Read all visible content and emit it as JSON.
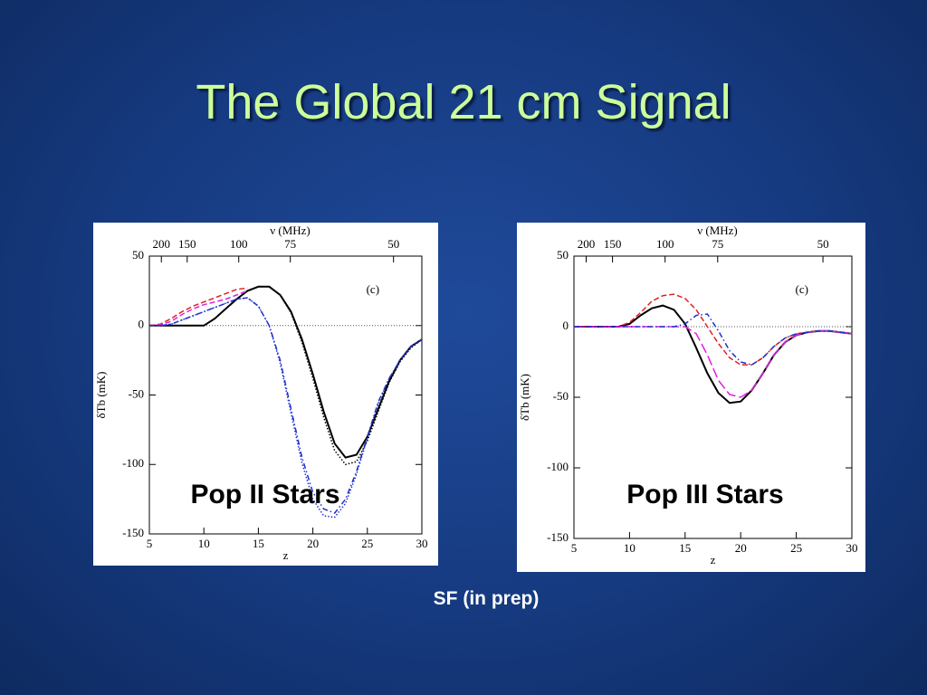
{
  "title": "The Global 21 cm Signal",
  "caption": "SF (in prep)",
  "chart_data": [
    {
      "type": "line",
      "overlay": "Pop II Stars",
      "annotation": "(c)",
      "x_label": "z",
      "y_label": "δTb (mK)",
      "top_label": "ν (MHz)",
      "xlim": [
        5,
        30
      ],
      "ylim": [
        -150,
        50
      ],
      "xticks": [
        5,
        10,
        15,
        20,
        25,
        30
      ],
      "yticks": [
        -150,
        -100,
        -50,
        0,
        50
      ],
      "top_xticks": [
        {
          "value": 6.1,
          "label": "200"
        },
        {
          "value": 8.47,
          "label": "150"
        },
        {
          "value": 13.2,
          "label": "100"
        },
        {
          "value": 17.93,
          "label": "75"
        },
        {
          "value": 27.4,
          "label": "50"
        }
      ],
      "reference_line": 0,
      "x": [
        5,
        6,
        7,
        8,
        9,
        10,
        11,
        12,
        13,
        14,
        15,
        16,
        17,
        18,
        19,
        20,
        21,
        22,
        23,
        24,
        25,
        26,
        27,
        28,
        29,
        30
      ],
      "series": [
        {
          "color": "#000000",
          "dash": "solid",
          "values": [
            0,
            0,
            0,
            0,
            0,
            0,
            5,
            12,
            19,
            25,
            28,
            28,
            22,
            10,
            -10,
            -35,
            -62,
            -85,
            -95,
            -93,
            -80,
            -60,
            -40,
            -25,
            -15,
            -10
          ]
        },
        {
          "color": "#000000",
          "dash": "dotted",
          "values": [
            0,
            0,
            0,
            0,
            0,
            0,
            5,
            12,
            19,
            25,
            28,
            28,
            22,
            9,
            -12,
            -38,
            -66,
            -90,
            -100,
            -98,
            -83,
            -62,
            -41,
            -26,
            -16,
            -10
          ]
        },
        {
          "color": "#e02020",
          "dash": "dashed",
          "values": [
            0,
            1,
            5,
            10,
            14,
            17,
            20,
            23,
            26,
            27,
            null,
            null,
            null,
            null,
            null,
            null,
            null,
            null,
            null,
            null,
            null,
            null,
            null,
            null,
            null,
            null
          ]
        },
        {
          "color": "#e020e0",
          "dash": "dashed",
          "values": [
            0,
            0.5,
            3,
            8,
            12,
            15,
            17,
            19,
            22,
            25,
            null,
            null,
            null,
            null,
            null,
            null,
            null,
            null,
            null,
            null,
            null,
            null,
            null,
            null,
            null,
            null
          ]
        },
        {
          "color": "#2030d0",
          "dash": "dashdot",
          "values": [
            0,
            0,
            1,
            4,
            7,
            10,
            13,
            16,
            19,
            20,
            14,
            0,
            -25,
            -60,
            -95,
            -120,
            -132,
            -135,
            -125,
            -105,
            -80,
            -55,
            -38,
            -25,
            -15,
            -10
          ]
        },
        {
          "color": "#2030d0",
          "dash": "dotted",
          "values": [
            0,
            0,
            1,
            4,
            7,
            10,
            13,
            16,
            19,
            20,
            14,
            0,
            -27,
            -63,
            -99,
            -125,
            -137,
            -138,
            -128,
            -107,
            -81,
            -56,
            -38,
            -25,
            -15,
            -10
          ]
        }
      ]
    },
    {
      "type": "line",
      "overlay": "Pop III Stars",
      "annotation": "(c)",
      "x_label": "z",
      "y_label": "δTb (mK)",
      "top_label": "ν (MHz)",
      "xlim": [
        5,
        30
      ],
      "ylim": [
        -150,
        50
      ],
      "xticks": [
        5,
        10,
        15,
        20,
        25,
        30
      ],
      "yticks": [
        -150,
        -100,
        -50,
        0,
        50
      ],
      "top_xticks": [
        {
          "value": 6.1,
          "label": "200"
        },
        {
          "value": 8.47,
          "label": "150"
        },
        {
          "value": 13.2,
          "label": "100"
        },
        {
          "value": 17.93,
          "label": "75"
        },
        {
          "value": 27.4,
          "label": "50"
        }
      ],
      "reference_line": 0,
      "x": [
        5,
        6,
        7,
        8,
        9,
        10,
        11,
        12,
        13,
        14,
        15,
        16,
        17,
        18,
        19,
        20,
        21,
        22,
        23,
        24,
        25,
        26,
        27,
        28,
        29,
        30
      ],
      "series": [
        {
          "color": "#000000",
          "dash": "solid",
          "values": [
            0,
            0,
            0,
            0,
            0,
            2,
            8,
            13,
            15,
            12,
            2,
            -15,
            -33,
            -47,
            -54,
            -53,
            -45,
            -33,
            -20,
            -11,
            -6,
            -4,
            -3,
            -3,
            -4,
            -5
          ]
        },
        {
          "color": "#e02020",
          "dash": "dashed",
          "values": [
            0,
            0,
            0,
            0,
            0,
            3,
            10,
            18,
            22,
            23,
            20,
            12,
            0,
            -12,
            -22,
            -27,
            -27,
            -22,
            -14,
            -8,
            -5,
            -4,
            -3,
            -3,
            -4,
            -5
          ]
        },
        {
          "color": "#e020e0",
          "dash": "longdash",
          "values": [
            0,
            0,
            0,
            0,
            0,
            0,
            0,
            0,
            0,
            0,
            0,
            -5,
            -20,
            -38,
            -48,
            -50,
            -45,
            -33,
            -20,
            -11,
            -6,
            -4,
            -3,
            -3,
            -4,
            -5
          ]
        },
        {
          "color": "#2030d0",
          "dash": "dashdot",
          "values": [
            0,
            0,
            0,
            0,
            0,
            0,
            0,
            0,
            0,
            0,
            2,
            8,
            9,
            -3,
            -17,
            -25,
            -27,
            -22,
            -14,
            -8,
            -5,
            -4,
            -3,
            -3,
            -4,
            -5
          ]
        }
      ]
    }
  ]
}
